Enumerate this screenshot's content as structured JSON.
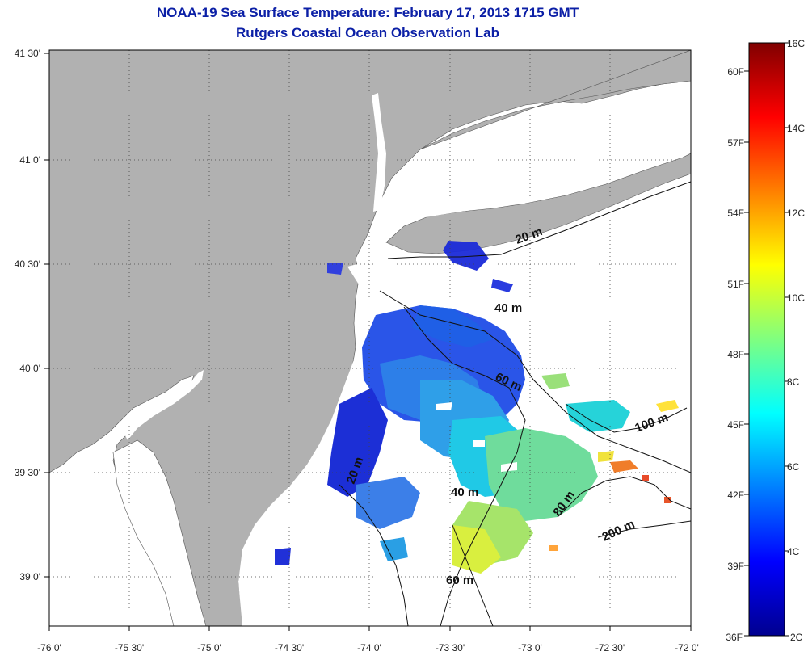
{
  "header": {
    "title": "NOAA-19 Sea Surface Temperature:  February 17, 2013 1715 GMT",
    "subtitle": "Rutgers Coastal Ocean Observation Lab"
  },
  "axes": {
    "x_ticks": [
      "-76 0'",
      "-75 30'",
      "-75 0'",
      "-74 30'",
      "-74 0'",
      "-73 30'",
      "-73 0'",
      "-72 30'",
      "-72 0'"
    ],
    "y_ticks": [
      "41 30'",
      "41 0'",
      "40 30'",
      "40 0'",
      "39 30'",
      "39 0'"
    ],
    "lon_range": [
      -76.0,
      -72.0
    ],
    "lat_range": [
      38.75,
      41.5
    ]
  },
  "contours": [
    {
      "label": "20 m"
    },
    {
      "label": "40 m"
    },
    {
      "label": "60 m"
    },
    {
      "label": "100 m"
    },
    {
      "label": "80 m"
    },
    {
      "label": "200 m"
    },
    {
      "label": "40 m"
    },
    {
      "label": "60 m"
    },
    {
      "label": "20 m"
    }
  ],
  "colorbar": {
    "celsius_labels": [
      "16C",
      "14C",
      "12C",
      "10C",
      "8C",
      "6C",
      "4C",
      "2C"
    ],
    "fahrenheit_labels": [
      "60F",
      "57F",
      "54F",
      "51F",
      "48F",
      "45F",
      "42F",
      "39F",
      "36F"
    ],
    "celsius_range": [
      2,
      16
    ]
  },
  "colors": {
    "land": "#b1b1b1",
    "water_nodata": "#ffffff",
    "title": "#0b1fa6"
  }
}
